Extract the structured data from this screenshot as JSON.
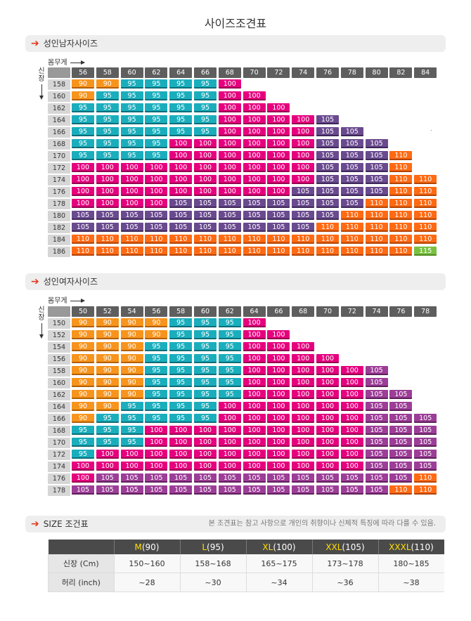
{
  "page_title": "사이즈조견표",
  "weight_label": "몸무게",
  "height_label_chars": [
    "신",
    "장"
  ],
  "men": {
    "section_title": "성인남자사이즈",
    "weights": [
      "56",
      "58",
      "60",
      "62",
      "64",
      "66",
      "68",
      "70",
      "72",
      "74",
      "76",
      "78",
      "80",
      "82",
      "84"
    ],
    "rows": [
      {
        "h": "158",
        "v": [
          "90",
          "90",
          "95",
          "95",
          "95",
          "95",
          "100"
        ]
      },
      {
        "h": "160",
        "v": [
          "90",
          "95",
          "95",
          "95",
          "95",
          "95",
          "100",
          "100"
        ]
      },
      {
        "h": "162",
        "v": [
          "95",
          "95",
          "95",
          "95",
          "95",
          "95",
          "100",
          "100",
          "100"
        ]
      },
      {
        "h": "164",
        "v": [
          "95",
          "95",
          "95",
          "95",
          "95",
          "95",
          "100",
          "100",
          "100",
          "100",
          "105"
        ]
      },
      {
        "h": "166",
        "v": [
          "95",
          "95",
          "95",
          "95",
          "95",
          "95",
          "100",
          "100",
          "100",
          "100",
          "105",
          "105"
        ]
      },
      {
        "h": "168",
        "v": [
          "95",
          "95",
          "95",
          "95",
          "100",
          "100",
          "100",
          "100",
          "100",
          "100",
          "105",
          "105",
          "105"
        ]
      },
      {
        "h": "170",
        "v": [
          "95",
          "95",
          "95",
          "95",
          "100",
          "100",
          "100",
          "100",
          "100",
          "100",
          "105",
          "105",
          "105",
          "110"
        ]
      },
      {
        "h": "172",
        "v": [
          "100",
          "100",
          "100",
          "100",
          "100",
          "100",
          "100",
          "100",
          "100",
          "100",
          "105",
          "105",
          "105",
          "110"
        ]
      },
      {
        "h": "174",
        "v": [
          "100",
          "100",
          "100",
          "100",
          "100",
          "100",
          "100",
          "100",
          "100",
          "100",
          "105",
          "105",
          "105",
          "110",
          "110"
        ]
      },
      {
        "h": "176",
        "v": [
          "100",
          "100",
          "100",
          "100",
          "100",
          "100",
          "100",
          "100",
          "100",
          "105",
          "105",
          "105",
          "105",
          "110",
          "110"
        ]
      },
      {
        "h": "178",
        "v": [
          "100",
          "100",
          "100",
          "100",
          "105",
          "105",
          "105",
          "105",
          "105",
          "105",
          "105",
          "105",
          "110",
          "110",
          "110"
        ]
      },
      {
        "h": "180",
        "v": [
          "105",
          "105",
          "105",
          "105",
          "105",
          "105",
          "105",
          "105",
          "105",
          "105",
          "105",
          "110",
          "110",
          "110",
          "110"
        ]
      },
      {
        "h": "182",
        "v": [
          "105",
          "105",
          "105",
          "105",
          "105",
          "105",
          "105",
          "105",
          "105",
          "105",
          "110",
          "110",
          "110",
          "110",
          "110"
        ]
      },
      {
        "h": "184",
        "v": [
          "110",
          "110",
          "110",
          "110",
          "110",
          "110",
          "110",
          "110",
          "110",
          "110",
          "110",
          "110",
          "110",
          "110",
          "110"
        ]
      },
      {
        "h": "186",
        "v": [
          "110",
          "110",
          "110",
          "110",
          "110",
          "110",
          "110",
          "110",
          "110",
          "110",
          "110",
          "110",
          "110",
          "110",
          "115"
        ]
      }
    ]
  },
  "women": {
    "section_title": "성인여자사이즈",
    "weights": [
      "50",
      "52",
      "54",
      "56",
      "58",
      "60",
      "62",
      "64",
      "66",
      "68",
      "70",
      "72",
      "74",
      "76",
      "78"
    ],
    "rows": [
      {
        "h": "150",
        "v": [
          "90",
          "90",
          "90",
          "90",
          "95",
          "95",
          "95",
          "100"
        ]
      },
      {
        "h": "152",
        "v": [
          "90",
          "90",
          "90",
          "90",
          "95",
          "95",
          "95",
          "100",
          "100"
        ]
      },
      {
        "h": "154",
        "v": [
          "90",
          "90",
          "90",
          "95",
          "95",
          "95",
          "95",
          "100",
          "100",
          "100"
        ]
      },
      {
        "h": "156",
        "v": [
          "90",
          "90",
          "90",
          "95",
          "95",
          "95",
          "95",
          "100",
          "100",
          "100",
          "100"
        ]
      },
      {
        "h": "158",
        "v": [
          "90",
          "90",
          "90",
          "95",
          "95",
          "95",
          "95",
          "100",
          "100",
          "100",
          "100",
          "100",
          "105"
        ]
      },
      {
        "h": "160",
        "v": [
          "90",
          "90",
          "90",
          "95",
          "95",
          "95",
          "95",
          "100",
          "100",
          "100",
          "100",
          "100",
          "105"
        ]
      },
      {
        "h": "162",
        "v": [
          "90",
          "90",
          "90",
          "95",
          "95",
          "95",
          "95",
          "100",
          "100",
          "100",
          "100",
          "100",
          "105",
          "105"
        ]
      },
      {
        "h": "164",
        "v": [
          "90",
          "90",
          "95",
          "95",
          "95",
          "95",
          "100",
          "100",
          "100",
          "100",
          "100",
          "100",
          "105",
          "105"
        ]
      },
      {
        "h": "166",
        "v": [
          "90",
          "95",
          "95",
          "95",
          "95",
          "95",
          "100",
          "100",
          "100",
          "100",
          "100",
          "100",
          "105",
          "105",
          "105"
        ]
      },
      {
        "h": "168",
        "v": [
          "95",
          "95",
          "95",
          "100",
          "100",
          "100",
          "100",
          "100",
          "100",
          "100",
          "100",
          "100",
          "105",
          "105",
          "105"
        ]
      },
      {
        "h": "170",
        "v": [
          "95",
          "95",
          "95",
          "100",
          "100",
          "100",
          "100",
          "100",
          "100",
          "100",
          "100",
          "100",
          "105",
          "105",
          "105"
        ]
      },
      {
        "h": "172",
        "v": [
          "95",
          "100",
          "100",
          "100",
          "100",
          "100",
          "100",
          "100",
          "100",
          "100",
          "100",
          "100",
          "105",
          "105",
          "105"
        ]
      },
      {
        "h": "174",
        "v": [
          "100",
          "100",
          "100",
          "100",
          "100",
          "100",
          "100",
          "100",
          "100",
          "100",
          "100",
          "100",
          "105",
          "105",
          "105"
        ]
      },
      {
        "h": "176",
        "v": [
          "100",
          "105",
          "105",
          "105",
          "105",
          "105",
          "105",
          "105",
          "105",
          "105",
          "105",
          "105",
          "105",
          "105",
          "110"
        ]
      },
      {
        "h": "178",
        "v": [
          "105",
          "105",
          "105",
          "105",
          "105",
          "105",
          "105",
          "105",
          "105",
          "105",
          "105",
          "105",
          "105",
          "110",
          "110"
        ]
      }
    ]
  },
  "size_table": {
    "section_title": "SIZE 조건표",
    "note": "본 조견표는 참고 사항으로 개인의 취향이나 신체적 특징에 따라 다를 수 있음.",
    "headers": [
      {
        "letter": "M",
        "num": "(90)"
      },
      {
        "letter": "L",
        "num": "(95)"
      },
      {
        "letter": "XL",
        "num": "(100)"
      },
      {
        "letter": "XXL",
        "num": "(105)"
      },
      {
        "letter": "XXXL",
        "num": "(110)"
      }
    ],
    "rows": [
      {
        "label": "신장 (Cm)",
        "v": [
          "150~160",
          "158~168",
          "165~175",
          "173~178",
          "180~185"
        ]
      },
      {
        "label": "허리 (inch)",
        "v": [
          "~28",
          "~30",
          "~34",
          "~36",
          "~38"
        ]
      }
    ]
  }
}
